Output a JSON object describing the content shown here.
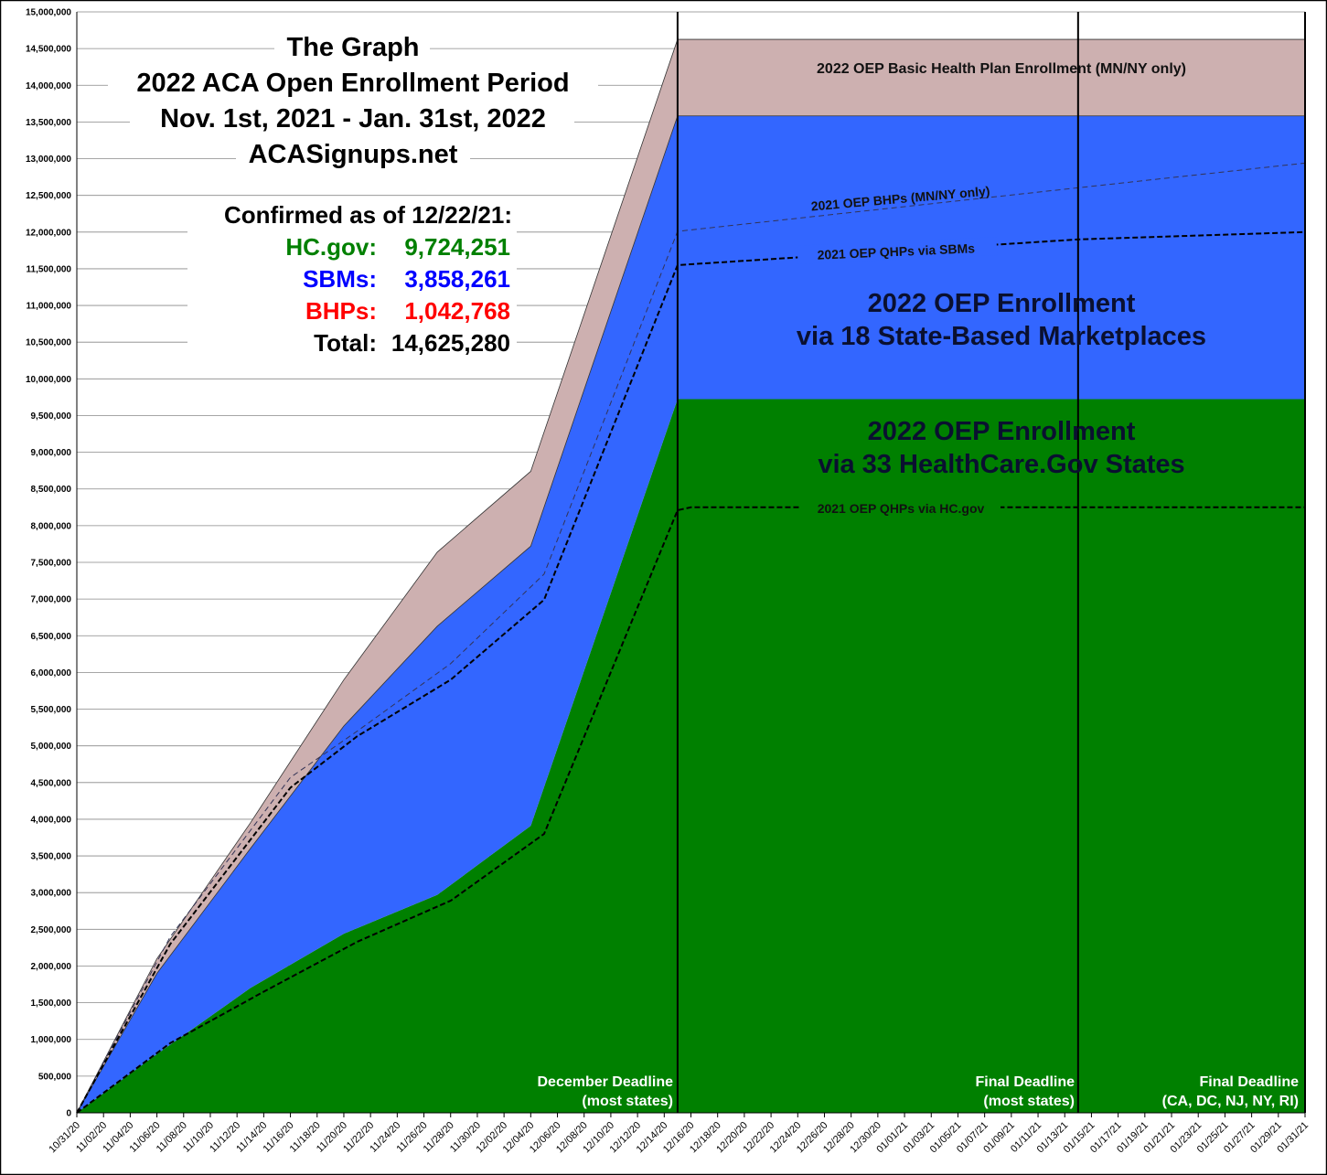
{
  "chart_data": {
    "type": "area",
    "title_lines": [
      "The Graph",
      "2022 ACA Open Enrollment Period",
      "Nov. 1st, 2021 - Jan. 31st, 2022",
      "ACASignups.net"
    ],
    "confirmed": {
      "heading": "Confirmed as of 12/22/21:",
      "rows": [
        {
          "label": "HC.gov:",
          "value": "9,724,251",
          "color": "#008000"
        },
        {
          "label": "SBMs:",
          "value": "3,858,261",
          "color": "#0000ff"
        },
        {
          "label": "BHPs:",
          "value": "1,042,768",
          "color": "#ff0000"
        },
        {
          "label": "Total:",
          "value": "14,625,280",
          "color": "#000000"
        }
      ]
    },
    "ylim": [
      0,
      15000000
    ],
    "ytick_step": 500000,
    "xlim": [
      "10/31/20",
      "01/31/21"
    ],
    "grid": true,
    "x_tick_labels": [
      "10/31/20",
      "11/02/20",
      "11/04/20",
      "11/06/20",
      "11/08/20",
      "11/10/20",
      "11/12/20",
      "11/14/20",
      "11/16/20",
      "11/18/20",
      "11/20/20",
      "11/22/20",
      "11/24/20",
      "11/26/20",
      "11/28/20",
      "11/30/20",
      "12/02/20",
      "12/04/20",
      "12/06/20",
      "12/08/20",
      "12/10/20",
      "12/12/20",
      "12/14/20",
      "12/16/20",
      "12/18/20",
      "12/20/20",
      "12/22/20",
      "12/24/20",
      "12/26/20",
      "12/28/20",
      "12/30/20",
      "01/01/21",
      "01/03/21",
      "01/05/21",
      "01/07/21",
      "01/09/21",
      "01/11/21",
      "01/13/21",
      "01/15/21",
      "01/17/21",
      "01/19/21",
      "01/21/21",
      "01/23/21",
      "01/25/21",
      "01/27/21",
      "01/29/21",
      "01/31/21"
    ],
    "stacked_series": {
      "x": [
        "10/31/20",
        "11/06/20",
        "11/13/20",
        "11/20/20",
        "11/27/20",
        "12/04/20",
        "12/15/20",
        "01/31/21"
      ],
      "series": [
        {
          "key": "hc",
          "values": [
            0,
            800000,
            1700000,
            2440000,
            2970000,
            3910000,
            9724251,
            9724251
          ],
          "color": "#008000"
        },
        {
          "key": "sbm",
          "values": [
            0,
            1100000,
            1900000,
            2830000,
            3660000,
            3810000,
            3858261,
            3858261
          ],
          "color": "#3366ff"
        },
        {
          "key": "bhp",
          "values": [
            0,
            200000,
            350000,
            630000,
            1010000,
            1020000,
            1042768,
            1042768
          ],
          "color": "#cdb0b0"
        }
      ]
    },
    "area_labels": {
      "bhp": "2022 OEP Basic Health Plan Enrollment (MN/NY only)",
      "sbm": [
        "2022 OEP Enrollment",
        "via 18 State-Based Marketplaces"
      ],
      "hc": [
        "2022 OEP Enrollment",
        "via 33 HealthCare.Gov States"
      ]
    },
    "comparison_lines": [
      {
        "name": "2021 OEP BHPs (MN/NY only)",
        "style": "thin-dashed",
        "color": "#333355",
        "x": [
          "10/31/20",
          "11/07/20",
          "11/16/20",
          "11/21/20",
          "11/28/20",
          "12/05/20",
          "12/15/20",
          "01/31/21"
        ],
        "values": [
          0,
          2400000,
          4570000,
          5200000,
          6120000,
          7340000,
          12010000,
          12940000
        ]
      },
      {
        "name": "2021 OEP QHPs via SBMs",
        "style": "dashed",
        "color": "#000000",
        "x": [
          "10/31/20",
          "11/07/20",
          "11/16/20",
          "11/21/20",
          "11/28/20",
          "12/05/20",
          "12/15/20",
          "01/14/21",
          "01/31/21"
        ],
        "values": [
          0,
          2300000,
          4430000,
          5130000,
          5900000,
          6990000,
          11550000,
          11900000,
          12000000
        ]
      },
      {
        "name": "2021 OEP QHPs via HC.gov",
        "style": "dashed",
        "color": "#000000",
        "x": [
          "10/31/20",
          "11/07/20",
          "11/14/20",
          "11/21/20",
          "11/28/20",
          "12/05/20",
          "12/15/20",
          "12/16/20",
          "01/31/21"
        ],
        "values": [
          0,
          950000,
          1650000,
          2330000,
          2890000,
          3800000,
          8210000,
          8250000,
          8250000
        ]
      }
    ],
    "deadlines": [
      {
        "x": "12/15/20",
        "lines": [
          "December Deadline",
          "(most states)"
        ]
      },
      {
        "x": "01/14/21",
        "lines": [
          "Final Deadline",
          "(most states)"
        ]
      },
      {
        "x": "01/31/21",
        "lines": [
          "Final Deadline",
          "(CA, DC, NJ, NY, RI)"
        ]
      }
    ]
  }
}
